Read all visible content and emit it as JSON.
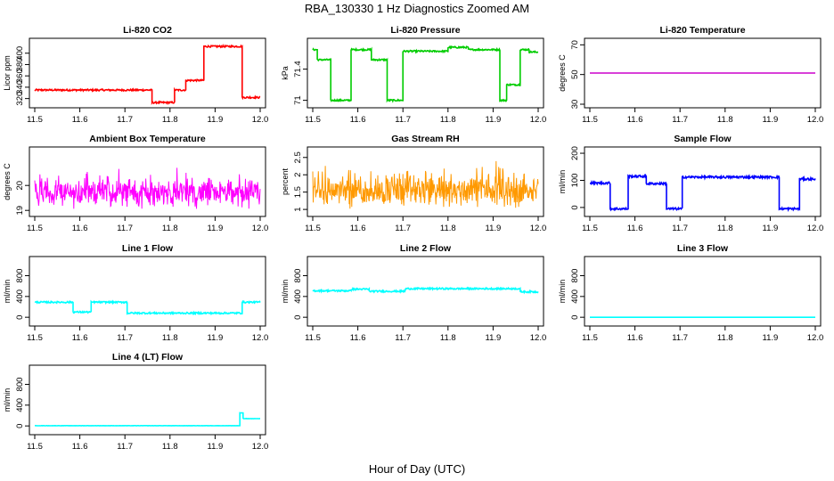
{
  "figure": {
    "title": "RBA_130330  1 Hz Diagnostics Zoomed AM",
    "xlabel": "Hour of Day (UTC)"
  },
  "chart_data": [
    {
      "type": "line",
      "title": "Li-820 CO2",
      "ylabel": "Licor ppm",
      "xlim": [
        11.5,
        12.0
      ],
      "ylim": [
        310,
        420
      ],
      "yticks": [
        320,
        340,
        360,
        380,
        400
      ],
      "color": "#ff0000",
      "style": "step",
      "x": [
        11.5,
        11.76,
        11.76,
        11.81,
        11.81,
        11.835,
        11.835,
        11.875,
        11.875,
        11.96,
        11.96,
        12.0
      ],
      "values": [
        335,
        335,
        313,
        313,
        335,
        335,
        352,
        352,
        412,
        412,
        322,
        322
      ],
      "noise": 1.5
    },
    {
      "type": "line",
      "title": "Li-820 Pressure",
      "ylabel": "kPa",
      "xlim": [
        11.5,
        12.0
      ],
      "ylim": [
        70.95,
        71.75
      ],
      "yticks": [
        71.0,
        71.4
      ],
      "color": "#00cc00",
      "style": "step",
      "x": [
        11.5,
        11.51,
        11.51,
        11.54,
        11.54,
        11.585,
        11.585,
        11.63,
        11.63,
        11.665,
        11.665,
        11.7,
        11.7,
        11.8,
        11.8,
        11.845,
        11.845,
        11.915,
        11.915,
        11.93,
        11.93,
        11.96,
        11.96,
        11.98,
        11.98,
        12.0
      ],
      "values": [
        71.65,
        71.65,
        71.52,
        71.52,
        71.0,
        71.0,
        71.65,
        71.65,
        71.52,
        71.52,
        71.0,
        71.0,
        71.63,
        71.63,
        71.68,
        71.68,
        71.65,
        71.65,
        71.0,
        71.0,
        71.2,
        71.2,
        71.65,
        71.65,
        71.62,
        71.62
      ],
      "noise": 0.01
    },
    {
      "type": "line",
      "title": "Li-820 Temperature",
      "ylabel": "degrees C",
      "xlim": [
        11.5,
        12.0
      ],
      "ylim": [
        30,
        72
      ],
      "yticks": [
        30,
        50,
        70
      ],
      "color": "#cc00cc",
      "style": "step",
      "x": [
        11.5,
        12.0
      ],
      "values": [
        51,
        51
      ],
      "noise": 0
    },
    {
      "type": "line",
      "title": "Ambient Box Temperature",
      "ylabel": "degrees C",
      "xlim": [
        11.5,
        12.0
      ],
      "ylim": [
        18.9,
        21.4
      ],
      "yticks": [
        19.0,
        20.0
      ],
      "color": "#ff00ff",
      "style": "noise",
      "x": [
        11.5,
        12.0
      ],
      "values": [
        19.7,
        19.7
      ],
      "noise": 0.65
    },
    {
      "type": "line",
      "title": "Gas Stream RH",
      "ylabel": "percent",
      "xlim": [
        11.5,
        12.0
      ],
      "ylim": [
        0.9,
        2.7
      ],
      "yticks": [
        1.0,
        1.5,
        2.0,
        2.5
      ],
      "color": "#ff9900",
      "style": "noise",
      "x": [
        11.5,
        12.0
      ],
      "values": [
        1.55,
        1.55
      ],
      "noise": 0.55
    },
    {
      "type": "line",
      "title": "Sample Flow",
      "ylabel": "ml/min",
      "xlim": [
        11.5,
        12.0
      ],
      "ylim": [
        -20,
        210
      ],
      "yticks": [
        0,
        100,
        200
      ],
      "color": "#0000ff",
      "style": "step",
      "x": [
        11.5,
        11.545,
        11.545,
        11.585,
        11.585,
        11.625,
        11.625,
        11.67,
        11.67,
        11.705,
        11.705,
        11.92,
        11.92,
        11.965,
        11.965,
        12.0
      ],
      "values": [
        90,
        90,
        -5,
        -5,
        115,
        115,
        88,
        88,
        -5,
        -5,
        112,
        112,
        -5,
        -5,
        105,
        105
      ],
      "noise": 4
    },
    {
      "type": "line",
      "title": "Line 1 Flow",
      "ylabel": "ml/min",
      "xlim": [
        11.5,
        12.0
      ],
      "ylim": [
        -100,
        1100
      ],
      "yticks": [
        0,
        400,
        800
      ],
      "color": "#00ffff",
      "style": "step",
      "x": [
        11.5,
        11.585,
        11.585,
        11.625,
        11.625,
        11.705,
        11.705,
        11.96,
        11.96,
        12.0
      ],
      "values": [
        290,
        290,
        100,
        100,
        290,
        290,
        80,
        80,
        290,
        290
      ],
      "noise": 15
    },
    {
      "type": "line",
      "title": "Line 2 Flow",
      "ylabel": "ml/min",
      "xlim": [
        11.5,
        12.0
      ],
      "ylim": [
        -100,
        1100
      ],
      "yticks": [
        0,
        400,
        800
      ],
      "color": "#00ffff",
      "style": "step",
      "x": [
        11.5,
        11.585,
        11.585,
        11.625,
        11.625,
        11.705,
        11.705,
        11.96,
        11.96,
        12.0
      ],
      "values": [
        510,
        510,
        540,
        540,
        500,
        500,
        550,
        550,
        490,
        490
      ],
      "noise": 15
    },
    {
      "type": "line",
      "title": "Line 3 Flow",
      "ylabel": "ml/min",
      "xlim": [
        11.5,
        12.0
      ],
      "ylim": [
        -100,
        1100
      ],
      "yticks": [
        0,
        400,
        800
      ],
      "color": "#00ffff",
      "style": "step",
      "x": [
        11.5,
        12.0
      ],
      "values": [
        0,
        0
      ],
      "noise": 0
    },
    {
      "type": "line",
      "title": "Line 4 (LT) Flow",
      "ylabel": "ml/min",
      "xlim": [
        11.5,
        12.0
      ],
      "ylim": [
        -100,
        1100
      ],
      "yticks": [
        0,
        400,
        800
      ],
      "color": "#00ffff",
      "style": "step",
      "x": [
        11.5,
        11.955,
        11.955,
        11.962,
        11.962,
        11.97,
        11.97,
        12.0
      ],
      "values": [
        5,
        5,
        250,
        250,
        140,
        140,
        140,
        140
      ],
      "noise": 2
    }
  ]
}
